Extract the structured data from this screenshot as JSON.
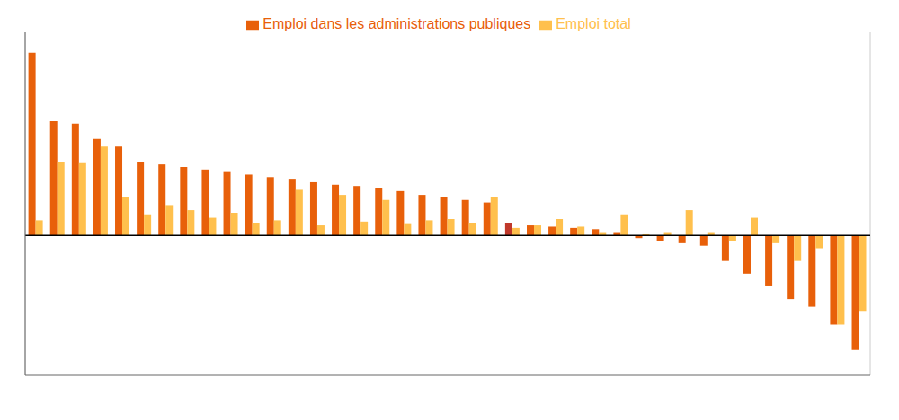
{
  "chart_data": {
    "type": "bar",
    "categories": [
      null,
      null,
      null,
      null,
      null,
      null,
      null,
      null,
      null,
      null,
      null,
      null,
      null,
      null,
      null,
      null,
      null,
      null,
      null,
      null,
      null,
      null,
      null,
      null,
      null,
      null,
      null,
      null,
      null,
      null,
      null,
      null,
      null,
      null,
      null,
      null,
      null,
      null,
      null
    ],
    "series": [
      {
        "name": "Emploi dans les administrations publiques",
        "color": "#E8600A",
        "colors": [
          "#E8600A",
          "#E8600A",
          "#E8600A",
          "#E8600A",
          "#E8600A",
          "#E8600A",
          "#E8600A",
          "#E8600A",
          "#E8600A",
          "#E8600A",
          "#E8600A",
          "#E8600A",
          "#E8600A",
          "#E8600A",
          "#E8600A",
          "#E8600A",
          "#E8600A",
          "#E8600A",
          "#E8600A",
          "#E8600A",
          "#E8600A",
          "#E8600A",
          "#C0392B",
          "#E8600A",
          "#E8600A",
          "#E8600A",
          "#E8600A",
          "#E8600A",
          "#E8600A",
          "#E8600A",
          "#E8600A",
          "#E8600A",
          "#E8600A",
          "#E8600A",
          "#E8600A",
          "#E8600A",
          "#E8600A",
          "#E8600A",
          "#E8600A"
        ],
        "values": [
          7.2,
          4.5,
          4.4,
          3.8,
          3.5,
          2.9,
          2.8,
          2.7,
          2.6,
          2.5,
          2.4,
          2.3,
          2.2,
          2.1,
          2.0,
          1.95,
          1.85,
          1.75,
          1.6,
          1.5,
          1.4,
          1.3,
          0.5,
          0.4,
          0.35,
          0.3,
          0.25,
          0.1,
          -0.1,
          -0.2,
          -0.3,
          -0.4,
          -1.0,
          -1.5,
          -2.0,
          -2.5,
          -2.8,
          -3.5,
          -4.5
        ]
      },
      {
        "name": "Emploi total",
        "color": "#FFC04D",
        "values": [
          0.6,
          2.9,
          2.85,
          3.5,
          1.5,
          0.8,
          1.2,
          1.0,
          0.7,
          0.9,
          0.5,
          0.6,
          1.8,
          0.4,
          1.6,
          0.55,
          1.4,
          0.45,
          0.6,
          0.65,
          0.5,
          1.5,
          0.3,
          0.4,
          0.65,
          0.35,
          0.1,
          0.8,
          0.05,
          0.1,
          1.0,
          0.1,
          -0.2,
          0.7,
          -0.3,
          -1.0,
          -0.5,
          -3.5,
          -3.0
        ]
      }
    ],
    "ylim": [
      -5.5,
      8.0
    ],
    "yticks": [
      -4,
      -2,
      0,
      2,
      4,
      6,
      8
    ],
    "grid": true,
    "legend": "top",
    "tick_labels": false
  }
}
